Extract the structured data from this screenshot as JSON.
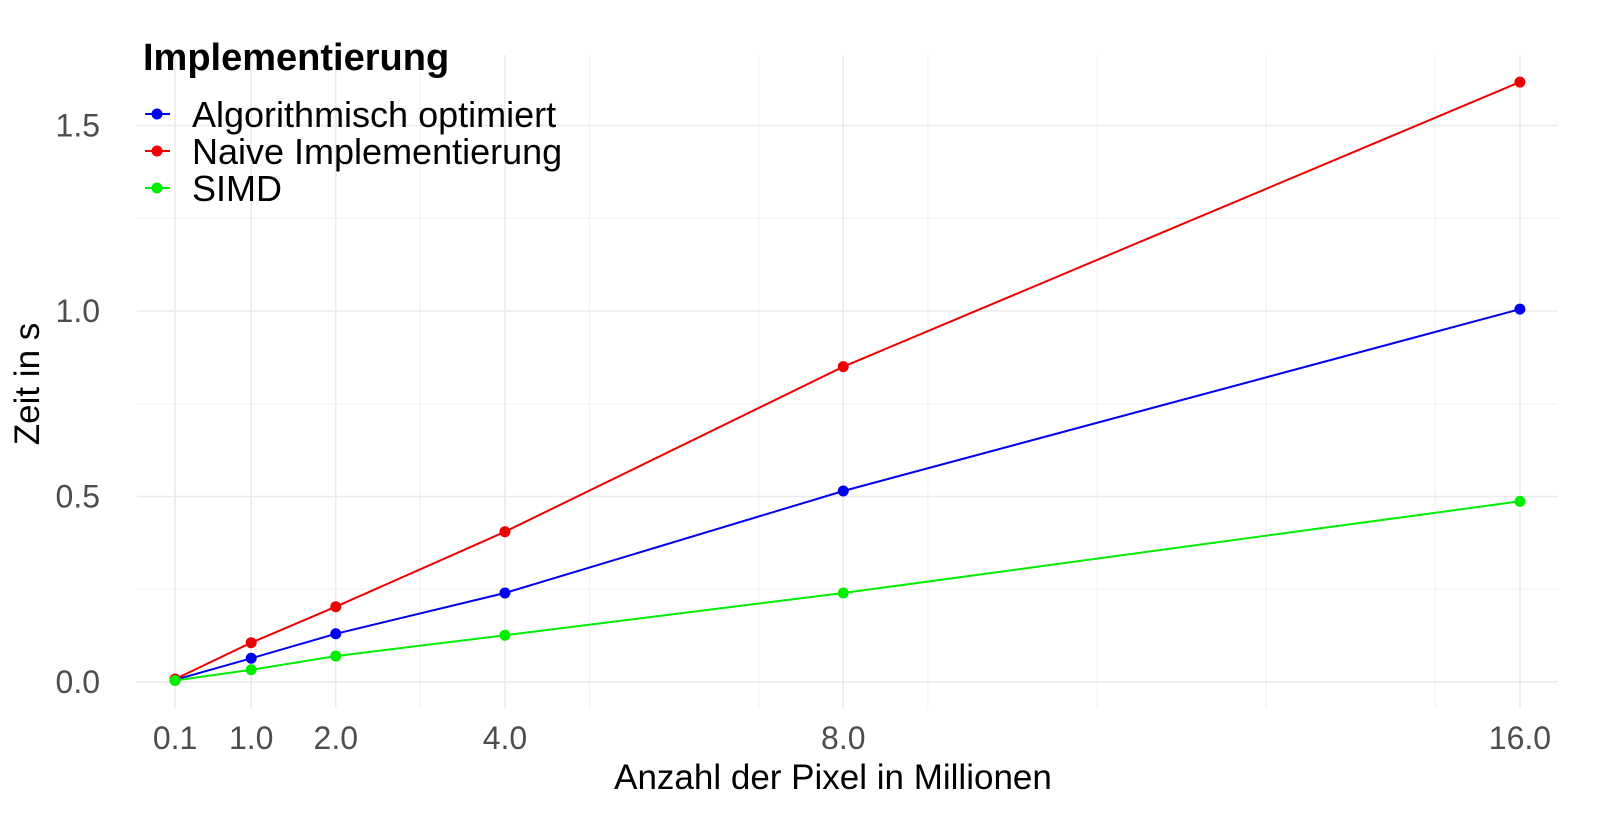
{
  "chart_data": {
    "type": "line",
    "title": "",
    "xlabel": "Anzahl der Pixel in Millionen",
    "ylabel": "Zeit in s",
    "x": [
      0.1,
      1.0,
      2.0,
      4.0,
      8.0,
      16.0
    ],
    "x_tick_values": [
      0.1,
      1.0,
      2.0,
      4.0,
      8.0,
      16.0
    ],
    "x_tick_labels": [
      "0.1",
      "1.0",
      "2.0",
      "4.0",
      "8.0",
      "16.0"
    ],
    "y_tick_values": [
      0.0,
      0.5,
      1.0,
      1.5
    ],
    "y_tick_labels": [
      "0.0",
      "0.5",
      "1.0",
      "1.5"
    ],
    "xlim": [
      -0.35,
      16.45
    ],
    "ylim": [
      -0.07,
      1.69
    ],
    "grid": true,
    "legend": {
      "title": "Implementierung",
      "position": "top-left"
    },
    "series": [
      {
        "name": "Algorithmisch optimiert",
        "color": "#0000ee",
        "values": [
          0.006,
          0.064,
          0.13,
          0.24,
          0.515,
          1.005
        ]
      },
      {
        "name": "Naive Implementierung",
        "color": "#ee0000",
        "values": [
          0.008,
          0.106,
          0.203,
          0.405,
          0.85,
          1.617
        ]
      },
      {
        "name": "SIMD",
        "color": "#00ee00",
        "values": [
          0.004,
          0.033,
          0.07,
          0.126,
          0.24,
          0.487
        ]
      }
    ]
  }
}
